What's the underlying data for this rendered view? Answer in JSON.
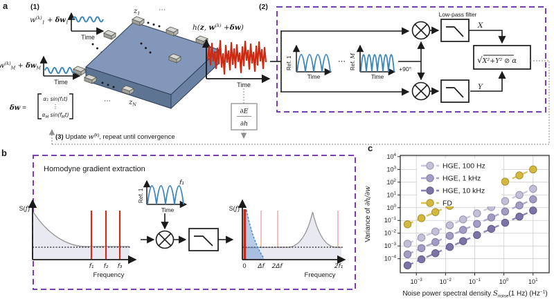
{
  "figure": {
    "panel_a_label": "a",
    "panel_b_label": "b",
    "panel_c_label": "c",
    "step1": "(1)",
    "step2": "(2)"
  },
  "panel_a": {
    "input1": {
      "w": "w",
      "sup": "(k)",
      "sub": "1",
      "plus": " + ",
      "dw": "δw",
      "sub2": "1"
    },
    "input2": {
      "w": "w",
      "sup": "(k)",
      "sub": "M",
      "plus": " + ",
      "dw": "δw",
      "sub2": "M"
    },
    "time": "Time",
    "slab": {
      "z": "z",
      "z1_sub": "1",
      "zN_sub": "N",
      "dots_top": "⋯",
      "dots_bottom": "⋯"
    },
    "h_plot": {
      "t1": "h(",
      "t2": "z",
      "t3": ", ",
      "t4": "w",
      "t5": "(k)",
      "t6": " +",
      "t7": "δw",
      "t8": ")",
      "time": "Time"
    },
    "dw_eq": {
      "lhs_d": "δw",
      "lhs_eq": " = ",
      "row1": "α₁ sin(f₁t)",
      "vdots": "⋮",
      "row3_a": "α",
      "row3_b": "M",
      "row3_c": " sin(f",
      "row3_d": "M",
      "row3_e": "t)"
    },
    "step3": {
      "t1": "(3)",
      "t2": " Update ",
      "t3": "w",
      "t4": "(k)",
      "t5": ", repeat until convergence"
    },
    "dEdh": {
      "num": "∂E",
      "den": "∂h"
    }
  },
  "panel_2": {
    "ref1": {
      "label_a": "Ref. ",
      "label_b": "1",
      "time": "Time"
    },
    "refM": {
      "label_a": "Ref. ",
      "label_b": "M",
      "time": "Time"
    },
    "dots": "⋯",
    "plus90": "+90°",
    "lpf_label": "Low-pass filter",
    "x_out": "X",
    "y_out": "Y",
    "eq": {
      "sqrt": "√",
      "radicand": "X²+Y²",
      "oslash": " ⊘ ",
      "alpha": "α"
    }
  },
  "panel_b": {
    "title": "Homodyne gradient extraction",
    "spec1": {
      "ylabel_a": "S(",
      "ylabel_b": "f",
      "ylabel_c": ")",
      "f1": "f₁",
      "f2": "f₂",
      "f3": "f₃",
      "xlabel": "Frequency"
    },
    "inset": {
      "ref_a": "Ref. ",
      "ref_b": "1",
      "time": "Time",
      "f1": "f₁"
    },
    "spec2": {
      "ylabel_a": "S(",
      "ylabel_b": "f",
      "ylabel_c": ")",
      "t0": "0",
      "t1": "Δf",
      "t2": "2Δf",
      "t3": "2f₁",
      "xlabel": "Frequency"
    }
  },
  "panel_c": {
    "chart_data": {
      "type": "scatter",
      "x": [
        0.0005,
        0.0015,
        0.0045,
        0.014,
        0.04,
        0.12,
        0.37,
        1.1,
        3.4,
        10
      ],
      "series": [
        {
          "name": "HGE, 100 Hz",
          "color": "#c4bfd9",
          "values": [
            0.0015,
            0.0045,
            0.0135,
            0.042,
            0.12,
            0.36,
            1.1,
            3.3,
            10,
            30
          ]
        },
        {
          "name": "HGE, 1 kHz",
          "color": "#a49cc6",
          "values": [
            0.00022,
            0.00068,
            0.002,
            0.0063,
            0.018,
            0.054,
            0.17,
            0.5,
            1.5,
            4.5
          ]
        },
        {
          "name": "HGE, 10 kHz",
          "color": "#7d73a8",
          "values": [
            3e-05,
            9e-05,
            0.00027,
            0.00084,
            0.0024,
            0.0072,
            0.022,
            0.066,
            0.2,
            0.6
          ]
        },
        {
          "name": "FD",
          "color": "#d5b93f",
          "values": [
            0.05,
            0.15,
            0.45,
            1.4,
            4.0,
            12,
            37,
            110,
            340,
            1000
          ]
        }
      ],
      "x_tick_exponents": [
        -3,
        -2,
        -1,
        0,
        1
      ],
      "y_tick_exponents": [
        4,
        3,
        2,
        1,
        0,
        -1,
        -2,
        -3,
        -4
      ],
      "xlim_exp": [
        -3.55,
        1.55
      ],
      "ylim_exp": [
        -5.1,
        4.1
      ],
      "grid": true,
      "legend_position": "upper left",
      "tick_base": "10",
      "xlabel_parts": {
        "t1": "Noise power spectral density ",
        "t2": "S",
        "t3": "noise",
        "t4": "(1 Hz) (Hz",
        "t5": "−1",
        "t6": ")"
      },
      "ylabel_parts": {
        "t1": "Variance of ",
        "t2": "∂h/∂w"
      }
    }
  },
  "colors": {
    "dashed_border": "#7a3db8",
    "waveform_blue": "#3a86bc",
    "signal_red": "#cd2a12",
    "spectrum_red_line": "#d32a1c",
    "pale_red_line": "#f5c0b5",
    "lavender_fill": "#e9e9f2",
    "gray_connector": "#8f8f8f",
    "slab_top": "#8297b9",
    "slab_front": "#5e7493",
    "slab_right": "#6b81a4"
  }
}
